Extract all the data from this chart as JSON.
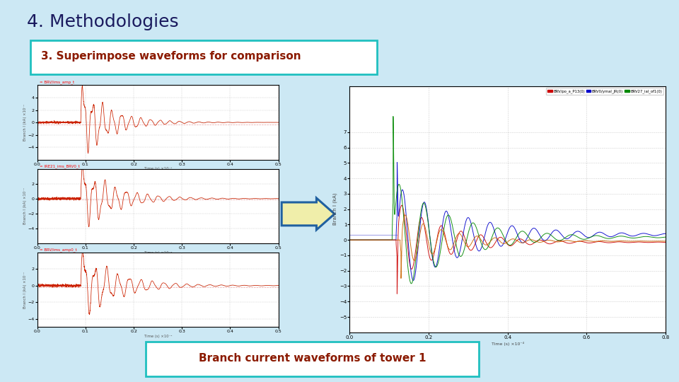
{
  "title": "4. Methodologies",
  "subtitle": "3. Superimpose waveforms for comparison",
  "bottom_label": "Branch current waveforms of tower 1",
  "bg_color": "#cce8f4",
  "title_color": "#1a1a5e",
  "subtitle_bg": "#ffffff",
  "subtitle_border": "#20c0c0",
  "subtitle_text_color": "#8b1a00",
  "bottom_bg": "#ffffff",
  "bottom_border": "#20c0c0",
  "bottom_text_color": "#8b1a00",
  "left_bar_color": "#1a3a6e",
  "plot_bg": "#ffffff",
  "grid_color": "#bbbbbb",
  "waveform_color_red": "#cc2200",
  "right_colors": [
    "#cc0000",
    "#0000cc",
    "#008800",
    "#cc6600"
  ]
}
